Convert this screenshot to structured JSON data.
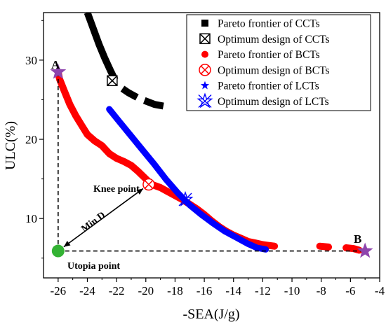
{
  "chart_data": {
    "type": "scatter",
    "xlabel": "-SEA(J/g)",
    "ylabel": "ULC(%)",
    "xlim": [
      -27,
      -4
    ],
    "ylim": [
      2.5,
      36
    ],
    "xticks": [
      -26,
      -24,
      -22,
      -20,
      -18,
      -16,
      -14,
      -12,
      -10,
      -8,
      -6,
      -4
    ],
    "yticks": [
      10,
      20,
      30
    ],
    "legend": {
      "position": "top-right"
    },
    "series": [
      {
        "name": "Pareto frontier of CCTs",
        "marker": "square",
        "color": "#000000",
        "curves": [
          [
            [
              -24.0,
              36
            ],
            [
              -23.6,
              34.0
            ],
            [
              -23.2,
              32.0
            ],
            [
              -22.8,
              30.2
            ],
            [
              -22.4,
              28.6
            ],
            [
              -22.1,
              27.5
            ]
          ],
          [
            [
              -21.6,
              26.4
            ],
            [
              -21.2,
              25.9
            ],
            [
              -20.6,
              25.3
            ]
          ],
          [
            [
              -20.1,
              24.9
            ],
            [
              -19.4,
              24.4
            ],
            [
              -18.8,
              24.2
            ]
          ]
        ]
      },
      {
        "name": "Optimum design of CCTs",
        "marker": "boxed-x",
        "color": "#000000",
        "points": [
          [
            -22.3,
            27.4
          ]
        ]
      },
      {
        "name": "Pareto frontier of BCTs",
        "marker": "circle",
        "color": "#ff0000",
        "curves": [
          [
            [
              -26.0,
              28.5
            ],
            [
              -25.9,
              27.6
            ],
            [
              -25.6,
              26.2
            ],
            [
              -25.2,
              24.4
            ],
            [
              -24.8,
              23.0
            ],
            [
              -24.4,
              21.8
            ],
            [
              -24.0,
              20.6
            ],
            [
              -23.5,
              19.8
            ],
            [
              -23.0,
              19.2
            ],
            [
              -22.5,
              18.2
            ],
            [
              -22.0,
              17.6
            ],
            [
              -21.5,
              17.2
            ],
            [
              -21.0,
              16.7
            ],
            [
              -20.5,
              15.9
            ],
            [
              -20.0,
              15.0
            ],
            [
              -19.6,
              14.3
            ],
            [
              -19.0,
              13.9
            ],
            [
              -18.5,
              13.4
            ],
            [
              -18.0,
              12.9
            ],
            [
              -17.5,
              12.4
            ],
            [
              -17.0,
              11.8
            ],
            [
              -16.5,
              11.2
            ],
            [
              -16.0,
              10.5
            ],
            [
              -15.5,
              9.7
            ],
            [
              -15.0,
              9.0
            ],
            [
              -14.5,
              8.4
            ],
            [
              -14.0,
              7.9
            ],
            [
              -13.5,
              7.5
            ],
            [
              -13.0,
              7.1
            ],
            [
              -12.5,
              6.9
            ],
            [
              -12.0,
              6.7
            ],
            [
              -11.2,
              6.5
            ]
          ],
          [
            [
              -8.1,
              6.5
            ],
            [
              -7.5,
              6.4
            ]
          ],
          [
            [
              -6.3,
              6.3
            ],
            [
              -5.8,
              6.2
            ],
            [
              -5.4,
              6.0
            ]
          ]
        ]
      },
      {
        "name": "Optimum design of BCTs",
        "marker": "circle-x",
        "color": "#ff0000",
        "points": [
          [
            -19.8,
            14.3
          ]
        ]
      },
      {
        "name": "Pareto frontier of LCTs",
        "marker": "star",
        "color": "#0000ff",
        "curves": [
          [
            [
              -22.5,
              23.8
            ],
            [
              -21.8,
              22.2
            ],
            [
              -21.0,
              20.4
            ],
            [
              -20.2,
              18.6
            ],
            [
              -19.4,
              16.8
            ],
            [
              -18.6,
              14.9
            ],
            [
              -17.8,
              13.2
            ],
            [
              -17.0,
              11.7
            ],
            [
              -16.2,
              10.5
            ],
            [
              -15.4,
              9.4
            ],
            [
              -14.6,
              8.4
            ],
            [
              -13.8,
              7.6
            ],
            [
              -13.0,
              6.8
            ],
            [
              -12.4,
              6.3
            ],
            [
              -11.8,
              6.1
            ]
          ]
        ]
      },
      {
        "name": "Optimum design of LCTs",
        "marker": "star-x",
        "color": "#0000ff",
        "points": [
          [
            -17.3,
            12.4
          ]
        ]
      }
    ],
    "annotations": {
      "point_a": {
        "label": "A",
        "x": -26.0,
        "y": 28.5,
        "marker": "star",
        "color": "#8e44ad"
      },
      "point_b": {
        "label": "B",
        "x": -5.0,
        "y": 5.9,
        "marker": "star",
        "color": "#8e44ad"
      },
      "utopia": {
        "label": "Utopia point",
        "x": -26.0,
        "y": 5.9,
        "marker": "circle",
        "color": "#33b233"
      },
      "knee": {
        "label": "Knee point"
      },
      "min_d": {
        "label": "Min D"
      }
    }
  }
}
